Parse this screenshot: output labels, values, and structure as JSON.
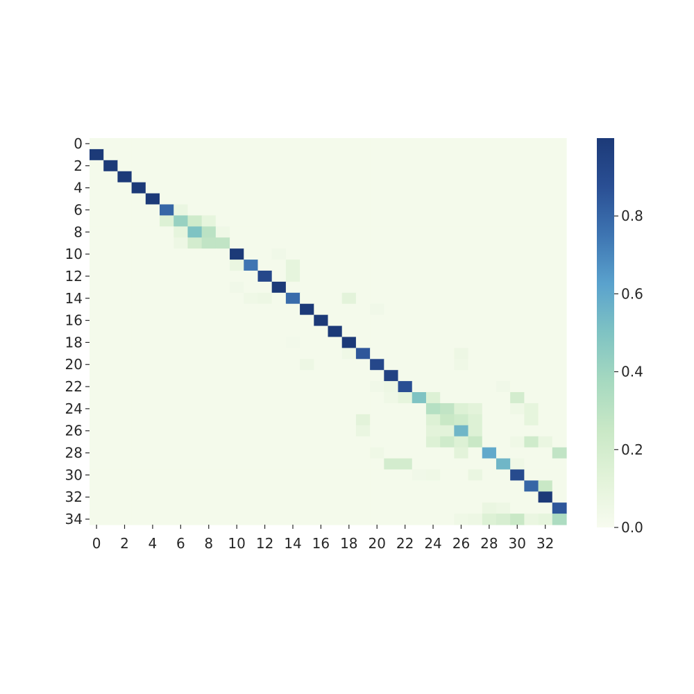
{
  "chart_data": {
    "type": "heatmap",
    "title": "",
    "xlabel": "",
    "ylabel": "",
    "n_rows": 35,
    "n_cols": 34,
    "x_tick_labels": [
      "0",
      "2",
      "4",
      "6",
      "8",
      "10",
      "12",
      "14",
      "16",
      "18",
      "20",
      "22",
      "24",
      "26",
      "28",
      "30",
      "32"
    ],
    "y_tick_labels": [
      "0",
      "2",
      "4",
      "6",
      "8",
      "10",
      "12",
      "14",
      "16",
      "18",
      "20",
      "22",
      "24",
      "26",
      "28",
      "30",
      "32",
      "34"
    ],
    "colorbar": {
      "range": [
        0,
        1.0
      ],
      "tick_values": [
        0.0,
        0.2,
        0.4,
        0.6,
        0.8
      ],
      "tick_labels": [
        "0.0",
        "0.2",
        "0.4",
        "0.6",
        "0.8"
      ],
      "colormap": [
        "#f7fbef",
        "#e2f3d9",
        "#c9e8c6",
        "#a6d9c0",
        "#7fc3c3",
        "#5aa2cd",
        "#3e75b2",
        "#2a4f94",
        "#1c3a78"
      ]
    },
    "background_value": 0.02,
    "cells": [
      [
        1,
        0,
        1.0
      ],
      [
        2,
        1,
        1.0
      ],
      [
        3,
        2,
        1.0
      ],
      [
        4,
        3,
        1.0
      ],
      [
        5,
        4,
        1.0
      ],
      [
        6,
        5,
        0.8
      ],
      [
        6,
        6,
        0.08
      ],
      [
        7,
        5,
        0.15
      ],
      [
        7,
        6,
        0.42
      ],
      [
        7,
        7,
        0.22
      ],
      [
        7,
        8,
        0.1
      ],
      [
        8,
        6,
        0.1
      ],
      [
        8,
        7,
        0.5
      ],
      [
        8,
        8,
        0.3
      ],
      [
        8,
        9,
        0.05
      ],
      [
        9,
        6,
        0.06
      ],
      [
        9,
        7,
        0.2
      ],
      [
        9,
        8,
        0.28
      ],
      [
        9,
        9,
        0.28
      ],
      [
        10,
        10,
        1.0
      ],
      [
        10,
        13,
        0.04
      ],
      [
        11,
        10,
        0.08
      ],
      [
        11,
        11,
        0.75
      ],
      [
        11,
        14,
        0.1
      ],
      [
        12,
        12,
        0.92
      ],
      [
        12,
        14,
        0.1
      ],
      [
        13,
        10,
        0.04
      ],
      [
        13,
        13,
        1.0
      ],
      [
        14,
        11,
        0.05
      ],
      [
        14,
        12,
        0.06
      ],
      [
        14,
        14,
        0.78
      ],
      [
        14,
        18,
        0.12
      ],
      [
        15,
        15,
        1.0
      ],
      [
        15,
        20,
        0.04
      ],
      [
        16,
        16,
        1.0
      ],
      [
        17,
        17,
        1.0
      ],
      [
        18,
        14,
        0.03
      ],
      [
        18,
        18,
        1.0
      ],
      [
        19,
        18,
        0.05
      ],
      [
        19,
        19,
        0.85
      ],
      [
        19,
        26,
        0.06
      ],
      [
        20,
        15,
        0.06
      ],
      [
        20,
        20,
        0.92
      ],
      [
        20,
        26,
        0.05
      ],
      [
        21,
        21,
        0.95
      ],
      [
        22,
        20,
        0.04
      ],
      [
        22,
        21,
        0.06
      ],
      [
        22,
        22,
        0.88
      ],
      [
        22,
        29,
        0.04
      ],
      [
        23,
        21,
        0.05
      ],
      [
        23,
        22,
        0.1
      ],
      [
        23,
        23,
        0.5
      ],
      [
        23,
        24,
        0.15
      ],
      [
        23,
        30,
        0.2
      ],
      [
        24,
        24,
        0.32
      ],
      [
        24,
        25,
        0.28
      ],
      [
        24,
        26,
        0.15
      ],
      [
        24,
        27,
        0.12
      ],
      [
        24,
        30,
        0.05
      ],
      [
        24,
        31,
        0.1
      ],
      [
        25,
        19,
        0.12
      ],
      [
        25,
        24,
        0.15
      ],
      [
        25,
        25,
        0.25
      ],
      [
        25,
        26,
        0.22
      ],
      [
        25,
        27,
        0.15
      ],
      [
        25,
        31,
        0.1
      ],
      [
        26,
        19,
        0.08
      ],
      [
        26,
        24,
        0.12
      ],
      [
        26,
        25,
        0.12
      ],
      [
        26,
        26,
        0.55
      ],
      [
        26,
        27,
        0.15
      ],
      [
        27,
        24,
        0.15
      ],
      [
        27,
        25,
        0.22
      ],
      [
        27,
        26,
        0.15
      ],
      [
        27,
        27,
        0.25
      ],
      [
        27,
        30,
        0.05
      ],
      [
        27,
        31,
        0.22
      ],
      [
        27,
        32,
        0.08
      ],
      [
        28,
        20,
        0.05
      ],
      [
        28,
        26,
        0.12
      ],
      [
        28,
        28,
        0.6
      ],
      [
        28,
        33,
        0.28
      ],
      [
        29,
        21,
        0.2
      ],
      [
        29,
        22,
        0.2
      ],
      [
        29,
        29,
        0.55
      ],
      [
        29,
        30,
        0.05
      ],
      [
        30,
        23,
        0.04
      ],
      [
        30,
        24,
        0.05
      ],
      [
        30,
        27,
        0.08
      ],
      [
        30,
        30,
        0.9
      ],
      [
        31,
        31,
        0.8
      ],
      [
        31,
        32,
        0.25
      ],
      [
        32,
        32,
        1.0
      ],
      [
        33,
        28,
        0.08
      ],
      [
        33,
        29,
        0.06
      ],
      [
        33,
        33,
        0.85
      ],
      [
        34,
        26,
        0.05
      ],
      [
        34,
        27,
        0.06
      ],
      [
        34,
        28,
        0.15
      ],
      [
        34,
        29,
        0.18
      ],
      [
        34,
        30,
        0.25
      ],
      [
        34,
        31,
        0.08
      ],
      [
        34,
        32,
        0.1
      ],
      [
        34,
        33,
        0.35
      ]
    ]
  }
}
